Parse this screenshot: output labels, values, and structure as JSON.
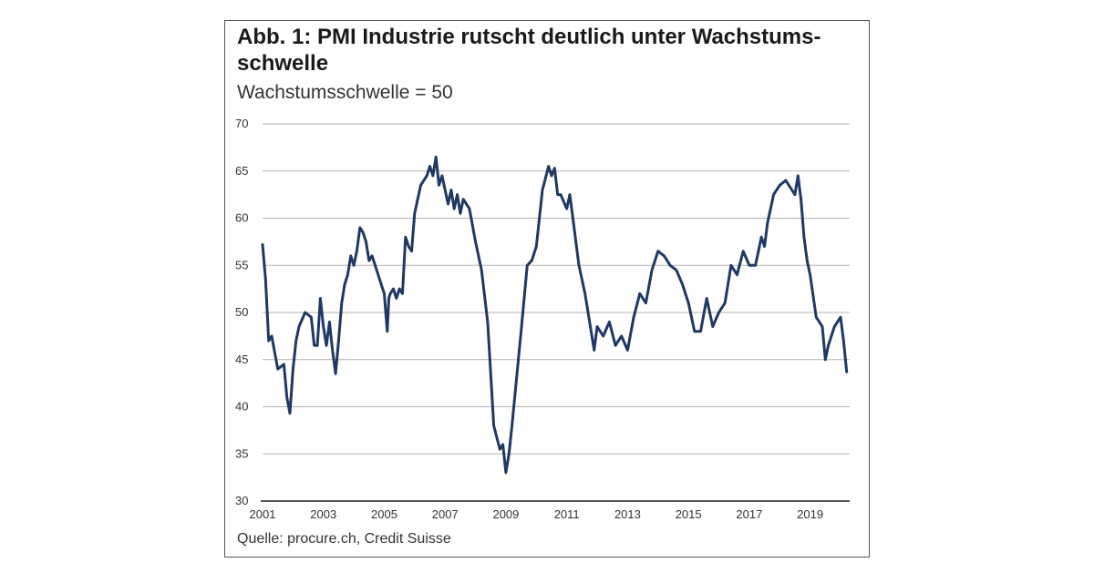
{
  "title": "Abb. 1: PMI Industrie rutscht deutlich unter Wachstums-schwelle",
  "subtitle": "Wachstumsschwelle = 50",
  "source": "Quelle: procure.ch, Credit Suisse",
  "colors": {
    "line": "#1f3864",
    "grid": "#b3b3b3",
    "axis": "#222222"
  },
  "chart_data": {
    "type": "line",
    "title": "Abb. 1: PMI Industrie rutscht deutlich unter Wachstums-schwelle",
    "subtitle": "Wachstumsschwelle = 50",
    "xlabel": "",
    "ylabel": "",
    "xlim": [
      2001,
      2020.3
    ],
    "ylim": [
      30,
      70
    ],
    "yticks": [
      30,
      35,
      40,
      45,
      50,
      55,
      60,
      65,
      70
    ],
    "xticks": [
      "2001",
      "2003",
      "2005",
      "2007",
      "2009",
      "2011",
      "2013",
      "2015",
      "2017",
      "2019"
    ],
    "grid": true,
    "series": [
      {
        "x": [
          2001.0,
          2001.1,
          2001.2,
          2001.3,
          2001.5,
          2001.7,
          2001.8,
          2001.9,
          2002.0,
          2002.1,
          2002.2,
          2002.4,
          2002.6,
          2002.7,
          2002.8,
          2002.9,
          2003.0,
          2003.1,
          2003.2,
          2003.3,
          2003.4,
          2003.5,
          2003.6,
          2003.7,
          2003.8,
          2003.9,
          2004.0,
          2004.1,
          2004.2,
          2004.3,
          2004.4,
          2004.5,
          2004.6,
          2004.7,
          2004.8,
          2004.9,
          2005.0,
          2005.1,
          2005.15,
          2005.2,
          2005.3,
          2005.4,
          2005.5,
          2005.6,
          2005.7,
          2005.8,
          2005.9,
          2006.0,
          2006.2,
          2006.4,
          2006.5,
          2006.6,
          2006.7,
          2006.8,
          2006.9,
          2007.0,
          2007.1,
          2007.2,
          2007.3,
          2007.4,
          2007.5,
          2007.6,
          2007.7,
          2007.8,
          2008.0,
          2008.2,
          2008.4,
          2008.6,
          2008.8,
          2008.9,
          2009.0,
          2009.1,
          2009.2,
          2009.35,
          2009.5,
          2009.7,
          2009.85,
          2010.0,
          2010.2,
          2010.4,
          2010.5,
          2010.6,
          2010.7,
          2010.8,
          2011.0,
          2011.1,
          2011.2,
          2011.4,
          2011.6,
          2011.8,
          2011.9,
          2012.0,
          2012.2,
          2012.4,
          2012.6,
          2012.8,
          2013.0,
          2013.2,
          2013.4,
          2013.6,
          2013.8,
          2014.0,
          2014.2,
          2014.4,
          2014.6,
          2014.8,
          2015.0,
          2015.2,
          2015.4,
          2015.6,
          2015.8,
          2016.0,
          2016.2,
          2016.4,
          2016.6,
          2016.8,
          2017.0,
          2017.2,
          2017.4,
          2017.5,
          2017.6,
          2017.8,
          2018.0,
          2018.2,
          2018.4,
          2018.5,
          2018.6,
          2018.7,
          2018.8,
          2018.9,
          2019.0,
          2019.2,
          2019.4,
          2019.5,
          2019.6,
          2019.8,
          2020.0,
          2020.1,
          2020.2
        ],
        "values": [
          57.2,
          53.5,
          47.0,
          47.5,
          44.0,
          44.5,
          41.0,
          39.3,
          44.0,
          47.0,
          48.5,
          50.0,
          49.5,
          46.5,
          46.5,
          51.5,
          48.5,
          46.5,
          49.0,
          46.0,
          43.5,
          47.0,
          51.0,
          53.0,
          54.0,
          56.0,
          55.0,
          56.5,
          59.0,
          58.5,
          57.5,
          55.5,
          56.0,
          55.0,
          54.0,
          53.0,
          52.0,
          48.0,
          51.5,
          52.0,
          52.5,
          51.5,
          52.5,
          52.0,
          58.0,
          57.0,
          56.5,
          60.5,
          63.5,
          64.5,
          65.5,
          64.5,
          66.5,
          63.5,
          64.5,
          63.0,
          61.5,
          63.0,
          61.0,
          62.5,
          60.5,
          62.0,
          61.5,
          61.0,
          57.5,
          54.5,
          49.0,
          38.0,
          35.5,
          36.0,
          33.0,
          35.0,
          38.0,
          43.0,
          48.0,
          55.0,
          55.5,
          57.0,
          63.0,
          65.5,
          64.5,
          65.3,
          62.5,
          62.5,
          61.0,
          62.5,
          60.0,
          55.0,
          52.0,
          48.0,
          46.0,
          48.5,
          47.5,
          49.0,
          46.5,
          47.5,
          46.0,
          49.5,
          52.0,
          51.0,
          54.5,
          56.5,
          56.0,
          55.0,
          54.5,
          53.0,
          51.0,
          48.0,
          48.0,
          51.5,
          48.5,
          50.0,
          51.0,
          55.0,
          54.0,
          56.5,
          55.0,
          55.0,
          58.0,
          57.0,
          59.5,
          62.5,
          63.5,
          64.0,
          63.0,
          62.5,
          64.5,
          62.0,
          58.0,
          55.5,
          54.0,
          49.5,
          48.5,
          45.0,
          46.5,
          48.5,
          49.5,
          47.0,
          43.7
        ]
      }
    ]
  }
}
